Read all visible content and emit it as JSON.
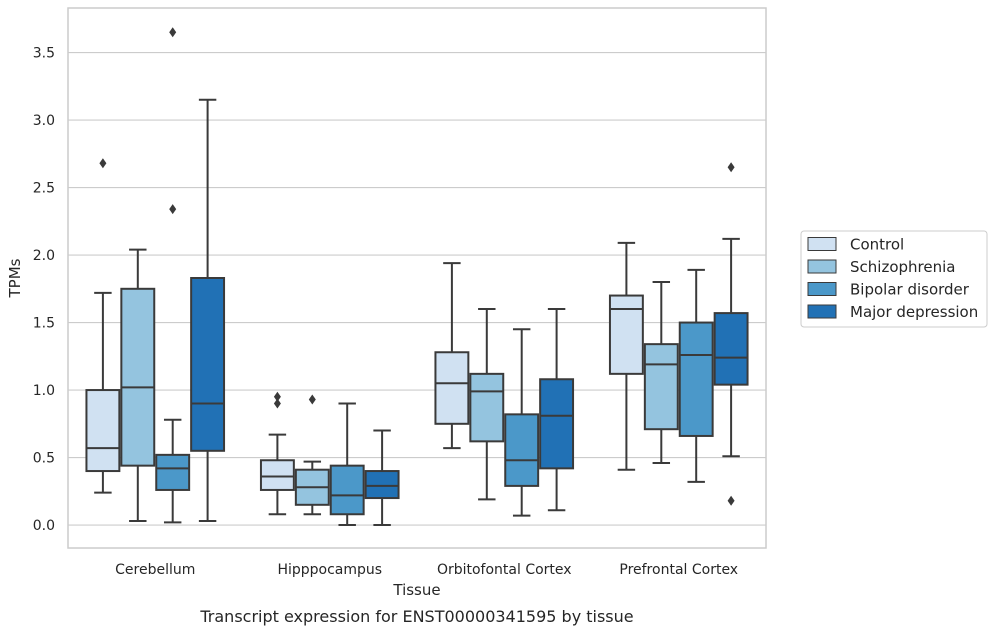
{
  "chart_data": {
    "type": "box",
    "title": "",
    "caption": "Transcript expression for ENST00000341595 by tissue",
    "xlabel": "Tissue",
    "ylabel": "TPMs",
    "ylim": [
      -0.17,
      3.83
    ],
    "yticks": [
      "0.0",
      "0.5",
      "1.0",
      "1.5",
      "2.0",
      "2.5",
      "3.0",
      "3.5"
    ],
    "grid": "horizontal",
    "legend_position": "right",
    "categories": [
      "Cerebellum",
      "Hipppocampus",
      "Orbitofontal Cortex",
      "Prefrontal Cortex"
    ],
    "series": [
      {
        "name": "Control",
        "color": "#d0e1f2",
        "boxes": [
          {
            "whislo": 0.24,
            "q1": 0.4,
            "med": 0.57,
            "q3": 1.0,
            "whishi": 1.72,
            "fliers": [
              2.68
            ]
          },
          {
            "whislo": 0.08,
            "q1": 0.26,
            "med": 0.36,
            "q3": 0.48,
            "whishi": 0.67,
            "fliers": [
              0.9,
              0.95
            ]
          },
          {
            "whislo": 0.57,
            "q1": 0.75,
            "med": 1.05,
            "q3": 1.28,
            "whishi": 1.94,
            "fliers": []
          },
          {
            "whislo": 0.41,
            "q1": 1.12,
            "med": 1.6,
            "q3": 1.7,
            "whishi": 2.09,
            "fliers": []
          }
        ]
      },
      {
        "name": "Schizophrenia",
        "color": "#94c4df",
        "boxes": [
          {
            "whislo": 0.03,
            "q1": 0.44,
            "med": 1.02,
            "q3": 1.75,
            "whishi": 2.04,
            "fliers": []
          },
          {
            "whislo": 0.08,
            "q1": 0.15,
            "med": 0.28,
            "q3": 0.41,
            "whishi": 0.47,
            "fliers": [
              0.93
            ]
          },
          {
            "whislo": 0.19,
            "q1": 0.62,
            "med": 0.99,
            "q3": 1.12,
            "whishi": 1.6,
            "fliers": []
          },
          {
            "whislo": 0.46,
            "q1": 0.71,
            "med": 1.19,
            "q3": 1.34,
            "whishi": 1.8,
            "fliers": []
          }
        ]
      },
      {
        "name": "Bipolar disorder",
        "color": "#4b98c9",
        "boxes": [
          {
            "whislo": 0.02,
            "q1": 0.26,
            "med": 0.42,
            "q3": 0.52,
            "whishi": 0.78,
            "fliers": [
              2.34,
              3.65
            ]
          },
          {
            "whislo": 0.0,
            "q1": 0.08,
            "med": 0.22,
            "q3": 0.44,
            "whishi": 0.9,
            "fliers": []
          },
          {
            "whislo": 0.07,
            "q1": 0.29,
            "med": 0.48,
            "q3": 0.82,
            "whishi": 1.45,
            "fliers": []
          },
          {
            "whislo": 0.32,
            "q1": 0.66,
            "med": 1.26,
            "q3": 1.5,
            "whishi": 1.89,
            "fliers": []
          }
        ]
      },
      {
        "name": "Major depression",
        "color": "#2171b5",
        "boxes": [
          {
            "whislo": 0.03,
            "q1": 0.55,
            "med": 0.9,
            "q3": 1.83,
            "whishi": 3.15,
            "fliers": []
          },
          {
            "whislo": 0.0,
            "q1": 0.2,
            "med": 0.29,
            "q3": 0.4,
            "whishi": 0.7,
            "fliers": []
          },
          {
            "whislo": 0.11,
            "q1": 0.42,
            "med": 0.81,
            "q3": 1.08,
            "whishi": 1.6,
            "fliers": []
          },
          {
            "whislo": 0.51,
            "q1": 1.04,
            "med": 1.24,
            "q3": 1.57,
            "whishi": 2.12,
            "fliers": [
              0.18,
              2.65
            ]
          }
        ]
      }
    ]
  },
  "colors": {
    "grid": "#cccccc",
    "frame": "#cccccc",
    "box_edge": "#3a3a3a",
    "text": "#262626",
    "legend_border": "#cccccc"
  }
}
